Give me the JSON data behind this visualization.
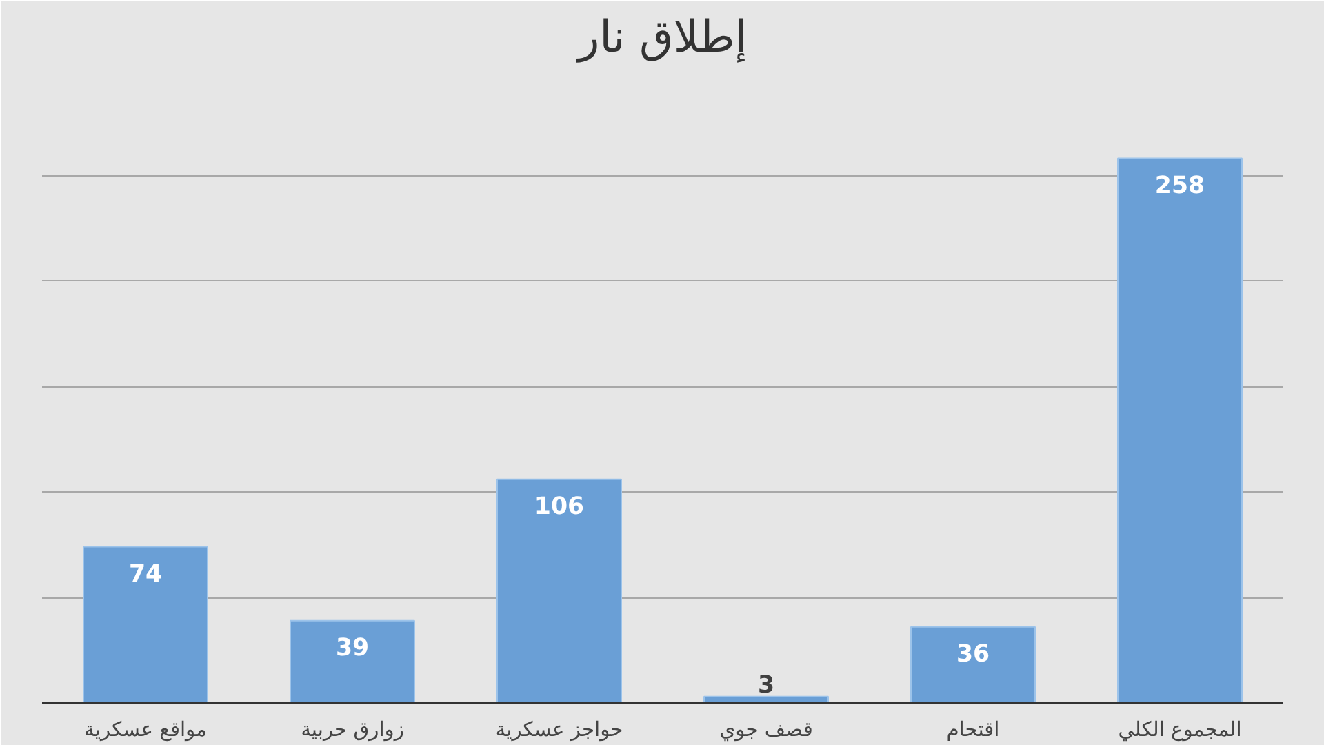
{
  "chart_data": {
    "type": "bar",
    "title": "إطلاق نار",
    "categories": [
      "مواقع عسكرية",
      "زوارق حربية",
      "حواجز عسكرية",
      "قصف جوي",
      "اقتحام",
      "المجموع الكلي"
    ],
    "values": [
      74,
      39,
      106,
      3,
      36,
      258
    ],
    "color": "#6a9fd6",
    "ylim": [
      0,
      300
    ],
    "yticks": [
      {
        "value": 0,
        "label": null
      },
      {
        "value": 50,
        "label": null
      },
      {
        "value": 100,
        "label": null
      },
      {
        "value": 150,
        "label": null
      },
      {
        "value": 200,
        "label": null
      },
      {
        "value": 250,
        "label": null
      },
      {
        "value": 300,
        "label": null
      }
    ],
    "grid": "y",
    "data_labels": true,
    "tick_labels": "x"
  }
}
